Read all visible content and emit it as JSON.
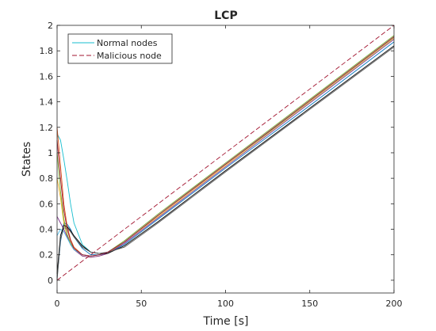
{
  "chart_data": {
    "type": "line",
    "title": "LCP",
    "xlabel": "Time [s]",
    "ylabel": "States",
    "xlim": [
      0,
      200
    ],
    "ylim": [
      -0.1,
      2
    ],
    "xticks": [
      0,
      50,
      100,
      150,
      200
    ],
    "xtick_labels": [
      "0",
      "50",
      "100",
      "150",
      "200"
    ],
    "yticks": [
      0,
      0.2,
      0.4,
      0.6,
      0.8,
      1,
      1.2,
      1.4,
      1.6,
      1.8,
      2
    ],
    "ytick_labels": [
      "0",
      "0.2",
      "0.4",
      "0.6",
      "0.8",
      "1",
      "1.2",
      "1.4",
      "1.6",
      "1.8",
      "2"
    ],
    "grid": false,
    "legend": {
      "position": "top-left",
      "entries": [
        {
          "label": "Normal nodes",
          "color": "#17becf",
          "style": "solid"
        },
        {
          "label": "Malicious node",
          "color": "#a2142f",
          "style": "dashed"
        }
      ]
    },
    "series": [
      {
        "color": "#17becf",
        "style": "solid",
        "x": [
          0,
          2,
          4,
          6,
          8,
          10,
          15,
          20,
          25,
          30,
          40,
          60,
          80,
          100,
          150,
          200
        ],
        "y": [
          1.15,
          1.1,
          0.95,
          0.78,
          0.6,
          0.45,
          0.28,
          0.22,
          0.21,
          0.22,
          0.3,
          0.51,
          0.71,
          0.91,
          1.4,
          1.9
        ]
      },
      {
        "color": "#0072bd",
        "style": "solid",
        "x": [
          0,
          2,
          4,
          6,
          8,
          10,
          15,
          20,
          25,
          30,
          40,
          60,
          80,
          100,
          150,
          200
        ],
        "y": [
          0.02,
          0.3,
          0.45,
          0.44,
          0.4,
          0.34,
          0.25,
          0.2,
          0.2,
          0.21,
          0.28,
          0.48,
          0.68,
          0.88,
          1.37,
          1.87
        ]
      },
      {
        "color": "#d95319",
        "style": "solid",
        "x": [
          0,
          2,
          4,
          6,
          8,
          10,
          15,
          20,
          25,
          30,
          40,
          60,
          80,
          100,
          150,
          200
        ],
        "y": [
          1.2,
          0.9,
          0.6,
          0.42,
          0.32,
          0.26,
          0.2,
          0.19,
          0.2,
          0.22,
          0.3,
          0.51,
          0.71,
          0.91,
          1.41,
          1.91
        ]
      },
      {
        "color": "#edb120",
        "style": "solid",
        "x": [
          0,
          2,
          4,
          6,
          8,
          10,
          15,
          20,
          25,
          30,
          40,
          60,
          80,
          100,
          150,
          200
        ],
        "y": [
          0.8,
          0.65,
          0.45,
          0.35,
          0.28,
          0.24,
          0.19,
          0.18,
          0.19,
          0.21,
          0.3,
          0.5,
          0.7,
          0.9,
          1.4,
          1.9
        ]
      },
      {
        "color": "#7e2f8e",
        "style": "solid",
        "x": [
          0,
          2,
          4,
          6,
          8,
          10,
          15,
          20,
          25,
          30,
          40,
          60,
          80,
          100,
          150,
          200
        ],
        "y": [
          0.5,
          0.45,
          0.4,
          0.34,
          0.28,
          0.24,
          0.19,
          0.18,
          0.19,
          0.21,
          0.29,
          0.49,
          0.69,
          0.89,
          1.39,
          1.89
        ]
      },
      {
        "color": "#77ac30",
        "style": "solid",
        "x": [
          0,
          2,
          4,
          6,
          8,
          10,
          15,
          20,
          25,
          30,
          40,
          60,
          80,
          100,
          150,
          200
        ],
        "y": [
          1.0,
          0.7,
          0.48,
          0.36,
          0.29,
          0.25,
          0.2,
          0.19,
          0.2,
          0.22,
          0.31,
          0.52,
          0.72,
          0.92,
          1.42,
          1.92
        ]
      },
      {
        "color": "#4dbeee",
        "style": "solid",
        "x": [
          0,
          2,
          4,
          6,
          8,
          10,
          15,
          20,
          25,
          30,
          40,
          60,
          80,
          100,
          150,
          200
        ],
        "y": [
          0.35,
          0.4,
          0.38,
          0.33,
          0.28,
          0.24,
          0.2,
          0.19,
          0.2,
          0.22,
          0.3,
          0.51,
          0.71,
          0.91,
          1.41,
          1.91
        ]
      },
      {
        "color": "#000000",
        "style": "solid",
        "x": [
          0,
          2,
          4,
          6,
          8,
          10,
          15,
          20,
          25,
          30,
          40,
          60,
          80,
          100,
          150,
          200
        ],
        "y": [
          0.05,
          0.35,
          0.43,
          0.42,
          0.39,
          0.35,
          0.27,
          0.22,
          0.21,
          0.21,
          0.27,
          0.46,
          0.66,
          0.86,
          1.35,
          1.84
        ]
      },
      {
        "color": "#555555",
        "style": "solid",
        "x": [
          0,
          2,
          4,
          6,
          8,
          10,
          15,
          20,
          25,
          30,
          40,
          60,
          80,
          100,
          150,
          200
        ],
        "y": [
          0.0,
          0.32,
          0.41,
          0.41,
          0.38,
          0.34,
          0.26,
          0.22,
          0.21,
          0.22,
          0.26,
          0.45,
          0.65,
          0.85,
          1.34,
          1.83
        ]
      },
      {
        "color": "#a2142f",
        "style": "solid",
        "x": [
          0,
          2,
          4,
          6,
          8,
          10,
          15,
          20,
          25,
          30,
          40,
          60,
          80,
          100,
          150,
          200
        ],
        "y": [
          1.1,
          0.8,
          0.55,
          0.4,
          0.31,
          0.25,
          0.2,
          0.19,
          0.2,
          0.22,
          0.3,
          0.51,
          0.71,
          0.91,
          1.41,
          1.91
        ]
      },
      {
        "color": "#a2142f",
        "style": "dashed",
        "x": [
          0,
          200
        ],
        "y": [
          0,
          2
        ]
      }
    ]
  }
}
